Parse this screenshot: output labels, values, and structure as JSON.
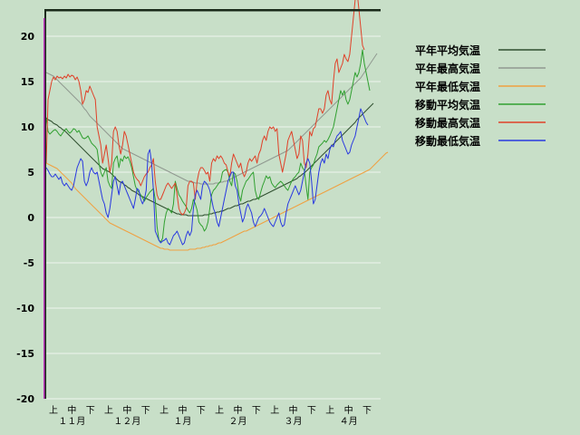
{
  "chart_data": {
    "type": "line",
    "title": "",
    "xlabel": "",
    "ylabel": "",
    "ylim": [
      -20,
      23
    ],
    "y_ticks": [
      20,
      15,
      10,
      5,
      0,
      -5,
      -10,
      -15,
      -20
    ],
    "grid": true,
    "legend_position": "right",
    "x_period_labels": [
      "上",
      "中",
      "下",
      "上",
      "中",
      "下",
      "上",
      "中",
      "下",
      "上",
      "中",
      "下",
      "上",
      "中",
      "下",
      "上",
      "中",
      "下"
    ],
    "x_month_labels": [
      "１１月",
      "１２月",
      "１月",
      "２月",
      "３月",
      "４月"
    ],
    "days": 181,
    "series": [
      {
        "name": "平年平均気温",
        "color": "#2f4f2f",
        "values": [
          11,
          10.8,
          10.7,
          10.6,
          10.4,
          10.3,
          10.2,
          10,
          9.9,
          9.7,
          9.6,
          9.4,
          9.2,
          9,
          8.8,
          8.6,
          8.4,
          8.2,
          8,
          7.8,
          7.6,
          7.4,
          7.2,
          7,
          6.8,
          6.6,
          6.4,
          6.2,
          6,
          5.8,
          5.6,
          5.4,
          5.3,
          5.2,
          5.1,
          5,
          4.8,
          4.6,
          4.4,
          4.2,
          4,
          3.9,
          3.8,
          3.6,
          3.5,
          3.3,
          3.2,
          3,
          2.9,
          2.8,
          2.7,
          2.5,
          2.4,
          2.3,
          2.2,
          2.1,
          2,
          1.9,
          1.8,
          1.7,
          1.6,
          1.5,
          1.4,
          1.3,
          1.2,
          1.1,
          1,
          0.9,
          0.8,
          0.7,
          0.6,
          0.5,
          0.4,
          0.4,
          0.3,
          0.3,
          0.3,
          0.3,
          0.2,
          0.2,
          0.2,
          0.2,
          0.2,
          0.2,
          0.2,
          0.2,
          0.2,
          0.3,
          0.3,
          0.3,
          0.4,
          0.4,
          0.5,
          0.5,
          0.6,
          0.6,
          0.7,
          0.7,
          0.8,
          0.9,
          1,
          1,
          1.1,
          1.2,
          1.3,
          1.3,
          1.4,
          1.5,
          1.5,
          1.6,
          1.7,
          1.8,
          1.8,
          1.9,
          2,
          2,
          2.1,
          2.2,
          2.3,
          2.4,
          2.5,
          2.6,
          2.7,
          2.8,
          2.9,
          3,
          3.1,
          3.2,
          3.3,
          3.4,
          3.5,
          3.6,
          3.7,
          3.8,
          3.9,
          4,
          4.1,
          4.2,
          4.3,
          4.5,
          4.6,
          4.8,
          4.9,
          5.1,
          5.3,
          5.5,
          5.7,
          5.9,
          6.1,
          6.3,
          6.5,
          6.7,
          6.9,
          7.1,
          7.3,
          7.5,
          7.7,
          7.9,
          8.1,
          8.3,
          8.5,
          8.7,
          8.9,
          9.1,
          9.3,
          9.5,
          9.7,
          9.9,
          10.1,
          10.3,
          10.5,
          10.8,
          11,
          11.2,
          11.4,
          11.6,
          11.8,
          12,
          12.2,
          12.4,
          12.6
        ]
      },
      {
        "name": "平年最高気温",
        "color": "#909890",
        "values": [
          16,
          15.9,
          15.8,
          15.7,
          15.6,
          15.4,
          15.2,
          15,
          14.8,
          14.6,
          14.4,
          14.2,
          14,
          13.8,
          13.6,
          13.4,
          13.2,
          13,
          12.8,
          12.6,
          12.3,
          12,
          11.8,
          11.5,
          11.2,
          11,
          10.8,
          10.6,
          10.4,
          10.2,
          10,
          9.8,
          9.6,
          9.4,
          9.2,
          9,
          8.8,
          8.6,
          8.4,
          8.2,
          8,
          7.8,
          7.6,
          7.5,
          7.4,
          7.3,
          7.2,
          7.1,
          7,
          6.9,
          6.8,
          6.7,
          6.6,
          6.5,
          6.4,
          6.3,
          6.2,
          6.1,
          6,
          5.9,
          5.8,
          5.7,
          5.6,
          5.5,
          5.4,
          5.3,
          5.2,
          5.1,
          5,
          4.9,
          4.8,
          4.7,
          4.6,
          4.5,
          4.4,
          4.3,
          4.2,
          4.1,
          4,
          4,
          3.9,
          3.9,
          3.8,
          3.8,
          3.8,
          3.7,
          3.7,
          3.7,
          3.7,
          3.7,
          3.7,
          3.7,
          3.7,
          3.8,
          3.8,
          3.8,
          3.9,
          3.9,
          4,
          4,
          4.1,
          4.2,
          4.3,
          4.4,
          4.5,
          4.6,
          4.7,
          4.8,
          4.9,
          5,
          5.1,
          5.2,
          5.3,
          5.4,
          5.5,
          5.6,
          5.7,
          5.8,
          5.9,
          6,
          6.1,
          6.2,
          6.3,
          6.4,
          6.5,
          6.6,
          6.7,
          6.8,
          6.9,
          7,
          7.1,
          7.2,
          7.3,
          7.4,
          7.6,
          7.8,
          8,
          8.2,
          8.4,
          8.6,
          8.8,
          9,
          9.2,
          9.4,
          9.6,
          9.8,
          10,
          10.2,
          10.4,
          10.6,
          10.8,
          11,
          11.2,
          11.4,
          11.6,
          11.8,
          12,
          12.2,
          12.4,
          12.6,
          12.8,
          13,
          13.2,
          13.4,
          13.6,
          13.8,
          14,
          14.2,
          14.4,
          14.6,
          14.8,
          15,
          15.2,
          15.4,
          15.7,
          16,
          16.3,
          16.6,
          16.9,
          17.2,
          17.5,
          17.8,
          18.1
        ]
      },
      {
        "name": "平年最低気温",
        "color": "#f0a040",
        "values": [
          6,
          5.9,
          5.8,
          5.7,
          5.6,
          5.5,
          5.4,
          5.2,
          5,
          4.8,
          4.6,
          4.4,
          4.2,
          4,
          3.8,
          3.5,
          3.2,
          3,
          2.8,
          2.6,
          2.4,
          2.2,
          2,
          1.8,
          1.6,
          1.4,
          1.2,
          1,
          0.8,
          0.6,
          0.4,
          0.2,
          0,
          -0.2,
          -0.4,
          -0.6,
          -0.7,
          -0.8,
          -0.9,
          -1,
          -1.1,
          -1.2,
          -1.3,
          -1.4,
          -1.5,
          -1.6,
          -1.7,
          -1.8,
          -1.9,
          -2,
          -2.1,
          -2.2,
          -2.3,
          -2.4,
          -2.5,
          -2.6,
          -2.7,
          -2.8,
          -2.9,
          -3,
          -3.1,
          -3.2,
          -3.3,
          -3.4,
          -3.4,
          -3.5,
          -3.5,
          -3.5,
          -3.6,
          -3.6,
          -3.6,
          -3.6,
          -3.6,
          -3.6,
          -3.6,
          -3.6,
          -3.6,
          -3.6,
          -3.6,
          -3.5,
          -3.5,
          -3.5,
          -3.5,
          -3.4,
          -3.4,
          -3.4,
          -3.3,
          -3.3,
          -3.2,
          -3.2,
          -3.1,
          -3.1,
          -3,
          -3,
          -2.9,
          -2.8,
          -2.8,
          -2.7,
          -2.6,
          -2.5,
          -2.4,
          -2.3,
          -2.2,
          -2.1,
          -2,
          -1.9,
          -1.8,
          -1.7,
          -1.6,
          -1.5,
          -1.5,
          -1.4,
          -1.3,
          -1.2,
          -1.1,
          -1,
          -0.9,
          -0.8,
          -0.7,
          -0.6,
          -0.5,
          -0.4,
          -0.3,
          -0.2,
          -0.1,
          0,
          0.1,
          0.2,
          0.3,
          0.4,
          0.5,
          0.6,
          0.7,
          0.8,
          0.9,
          1,
          1.1,
          1.2,
          1.3,
          1.4,
          1.5,
          1.6,
          1.7,
          1.8,
          1.9,
          2,
          2.1,
          2.2,
          2.3,
          2.4,
          2.5,
          2.6,
          2.7,
          2.8,
          2.9,
          3,
          3.1,
          3.2,
          3.3,
          3.4,
          3.5,
          3.6,
          3.7,
          3.8,
          3.9,
          4,
          4.1,
          4.2,
          4.3,
          4.4,
          4.5,
          4.6,
          4.7,
          4.8,
          4.9,
          5,
          5.1,
          5.2,
          5.3,
          5.5,
          5.7,
          5.9,
          6.1,
          6.3,
          6.5,
          6.7,
          6.9,
          7.1,
          7.2
        ]
      },
      {
        "name": "移動平均気温",
        "color": "#30a030",
        "values": [
          11,
          9.5,
          9.2,
          9.4,
          9.6,
          9.7,
          9.5,
          9.2,
          9,
          9.3,
          9.6,
          9.8,
          9.5,
          9.3,
          9.5,
          9.8,
          9.7,
          9.4,
          9.6,
          9.2,
          8.8,
          8.7,
          8.8,
          9,
          8.6,
          8.2,
          8,
          7.8,
          7.5,
          6,
          5,
          4.5,
          5,
          5.5,
          4,
          3.5,
          3.2,
          6,
          6.5,
          6.8,
          5.5,
          6.5,
          6.2,
          6.8,
          6.5,
          6.7,
          6.2,
          5.5,
          4.5,
          3.5,
          3,
          2.8,
          2.5,
          2.2,
          1.8,
          2.2,
          2.5,
          2.8,
          3,
          3.2,
          2,
          -1,
          -2.5,
          -2.7,
          -2.3,
          -0.5,
          0.5,
          1,
          0.8,
          0.5,
          1.5,
          4,
          3.2,
          2.5,
          2.2,
          1.8,
          1.5,
          1.2,
          0.8,
          0.5,
          1,
          2,
          1.5,
          0.8,
          -0.5,
          -0.8,
          -1,
          -1.5,
          -1.2,
          -0.5,
          1,
          2.5,
          3,
          3.2,
          3.5,
          3.8,
          4,
          5,
          5.2,
          5.3,
          5,
          4,
          3.5,
          5,
          4.8,
          4,
          2.5,
          1.8,
          3,
          3.5,
          4,
          4.2,
          4.5,
          4.8,
          5,
          3,
          2.2,
          2,
          2.8,
          3.5,
          4,
          4.6,
          4.3,
          4.5,
          3.8,
          3.5,
          3.3,
          3.6,
          3.8,
          4,
          3.8,
          3.5,
          3.2,
          3,
          3.5,
          4,
          4.3,
          4.5,
          4.8,
          5,
          6,
          5.5,
          5.2,
          3.5,
          2,
          5,
          5.5,
          5.8,
          6.5,
          7,
          7.8,
          8,
          8.2,
          8.5,
          8.3,
          8.6,
          9,
          9.5,
          10,
          11,
          12,
          13,
          14,
          13.5,
          14,
          13,
          12.5,
          13,
          14,
          15,
          16,
          15.5,
          16,
          17,
          18.5,
          17,
          16,
          15,
          14
        ]
      },
      {
        "name": "移動最高気温",
        "color": "#e04028",
        "values": [
          6,
          13,
          14,
          15,
          15.5,
          15.2,
          15.6,
          15.4,
          15.5,
          15.3,
          15.6,
          15.4,
          15.8,
          15.5,
          15.7,
          15.6,
          15.2,
          15.5,
          15,
          14,
          12.5,
          13,
          14,
          13.8,
          14.5,
          14,
          13.5,
          13,
          10,
          9,
          8,
          6,
          7,
          8,
          6.5,
          5,
          6,
          9.5,
          10,
          9.5,
          8,
          7,
          8,
          9.5,
          9,
          8,
          7,
          6,
          5,
          4.5,
          4.2,
          4,
          3.5,
          4,
          4.5,
          4.8,
          5,
          5.5,
          5.8,
          6.5,
          4,
          2.5,
          2,
          2,
          2.5,
          3,
          3.5,
          3.8,
          3.5,
          3.2,
          3.5,
          3.8,
          2.5,
          1,
          0.5,
          0.3,
          0.5,
          1,
          3.5,
          4,
          4,
          3.8,
          2,
          4,
          5,
          5.5,
          5.5,
          5.2,
          4.8,
          5,
          4,
          6,
          6.5,
          6.2,
          6.8,
          6.5,
          6.8,
          6.5,
          6,
          5.8,
          5,
          4.5,
          6,
          7,
          6.5,
          6,
          5.5,
          6,
          5,
          4.5,
          5,
          6,
          6.5,
          6.2,
          6.5,
          6.8,
          6,
          7,
          7.5,
          8.5,
          9,
          8.5,
          9.5,
          10,
          9.8,
          10,
          9.5,
          9.8,
          7,
          6,
          5,
          6,
          7,
          8.5,
          9,
          9.5,
          8.5,
          7.5,
          6.5,
          7,
          9,
          8.5,
          6,
          5.5,
          7,
          9.5,
          9,
          9.8,
          10,
          11,
          12,
          12,
          11.5,
          12,
          13.5,
          14,
          13,
          12.5,
          15,
          17,
          17.5,
          16,
          16.5,
          17,
          18,
          17.5,
          17.2,
          18,
          20,
          22,
          24,
          25,
          23,
          21,
          19,
          18.5
        ]
      },
      {
        "name": "移動最低気温",
        "color": "#2838e0",
        "values": [
          5.5,
          5.2,
          4.8,
          4.5,
          4.5,
          4.8,
          4.5,
          4.2,
          4.5,
          3.8,
          3.5,
          3.8,
          3.5,
          3.2,
          3,
          3.5,
          4.5,
          5.5,
          6,
          6.5,
          6.2,
          4,
          3.5,
          4,
          5,
          5.5,
          5,
          4.8,
          5,
          4,
          3,
          2,
          1.5,
          0.5,
          0,
          1,
          2.5,
          4,
          4.5,
          3.5,
          2.5,
          3.8,
          4,
          3.5,
          3,
          2.5,
          2,
          1.5,
          1,
          2,
          3.2,
          3,
          2,
          1.5,
          2,
          3,
          7,
          7.5,
          6,
          3,
          -1.5,
          -2,
          -2.5,
          -2.8,
          -2.6,
          -2.5,
          -2.3,
          -2.8,
          -3,
          -2.5,
          -2,
          -1.8,
          -1.5,
          -2,
          -2.5,
          -3,
          -2.8,
          -2,
          -1.5,
          -2,
          -1.5,
          1,
          2.5,
          3,
          2.5,
          2,
          3.5,
          4,
          3.8,
          3.5,
          3,
          2,
          1,
          0.5,
          -0.5,
          -1,
          0,
          1,
          2,
          3,
          4,
          4.5,
          5,
          5,
          3.5,
          3,
          1.5,
          0.5,
          -0.5,
          0,
          1,
          1.5,
          1,
          0.5,
          -0.5,
          -1,
          -0.5,
          0,
          0.2,
          0.5,
          1,
          0.5,
          0,
          -0.5,
          -0.8,
          -1,
          -0.5,
          0,
          0.5,
          -0.5,
          -1,
          -0.8,
          0.5,
          1.5,
          2,
          2.5,
          3,
          3.5,
          3,
          2.5,
          3,
          4,
          5,
          6,
          6.5,
          6,
          4,
          1.5,
          2,
          3.5,
          5,
          6,
          6.5,
          6,
          7,
          6.5,
          7.5,
          8,
          7.8,
          8.5,
          9,
          9.2,
          9.5,
          8.5,
          8,
          7.5,
          7,
          7.2,
          8,
          8.5,
          9,
          10,
          11,
          12,
          11.5,
          11,
          10.5,
          10.2
        ]
      }
    ]
  }
}
